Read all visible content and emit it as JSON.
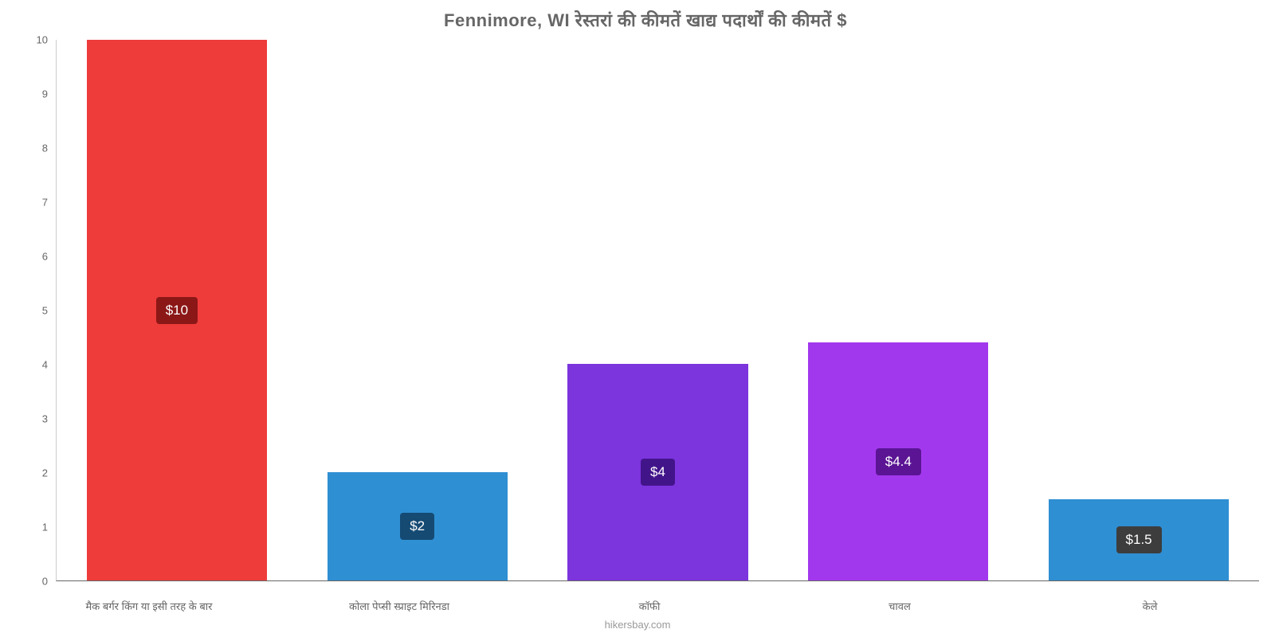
{
  "chart": {
    "type": "bar",
    "title": "Fennimore, WI रेस्तरां की कीमतें खाद्य पदार्थों की कीमतें $",
    "title_fontsize": 22,
    "title_color": "#666666",
    "background_color": "#ffffff",
    "ylim": [
      0,
      10
    ],
    "ytick_step": 1,
    "yticks": [
      0,
      1,
      2,
      3,
      4,
      5,
      6,
      7,
      8,
      9,
      10
    ],
    "axis_color": "#666666",
    "tick_label_color": "#666666",
    "tick_fontsize": 13,
    "bar_width_pct": 75,
    "categories": [
      "मैक बर्गर किंग या इसी तरह के बार",
      "कोला पेप्सी स्प्राइट मिरिनडा",
      "कॉफी",
      "चावल",
      "केले"
    ],
    "values": [
      10,
      2,
      4,
      4.4,
      1.5
    ],
    "value_labels": [
      "$10",
      "$2",
      "$4",
      "$4.4",
      "$1.5"
    ],
    "bar_colors": [
      "#ee3c3b",
      "#2f8fd3",
      "#7c34dd",
      "#a238ed",
      "#2f8fd3"
    ],
    "label_bg_colors": [
      "#8c1717",
      "#154a73",
      "#42148a",
      "#5a1494",
      "#3d3d3d"
    ],
    "label_fontsize": 17,
    "label_text_color": "#ffffff",
    "footer": "hikersbay.com",
    "footer_color": "#999999",
    "grid": false
  }
}
